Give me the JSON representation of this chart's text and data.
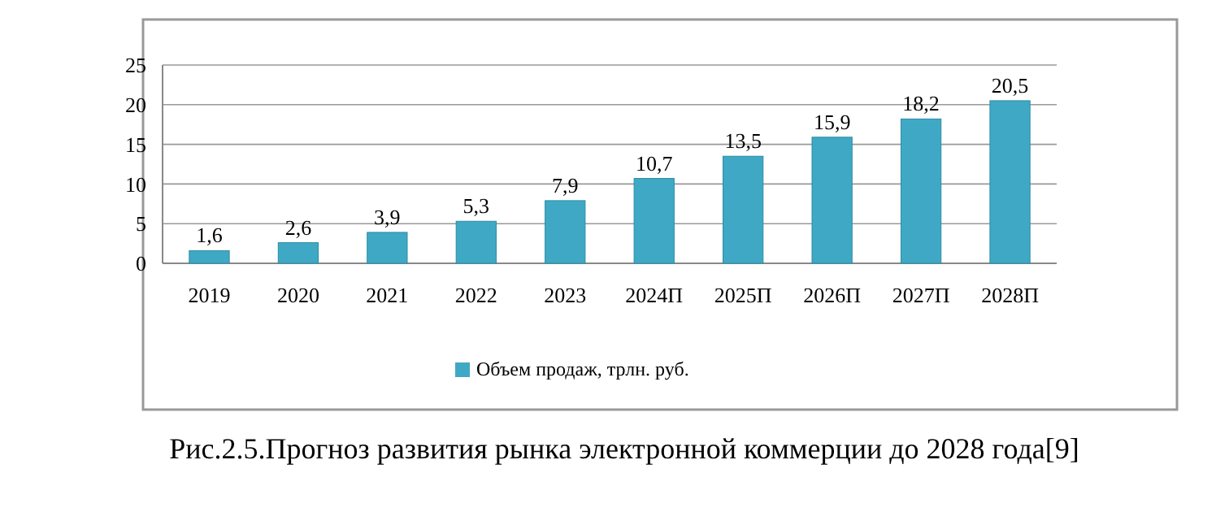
{
  "chart_data": {
    "type": "bar",
    "categories": [
      "2019",
      "2020",
      "2021",
      "2022",
      "2023",
      "2024П",
      "2025П",
      "2026П",
      "2027П",
      "2028П"
    ],
    "series": [
      {
        "name": "Объем продаж, трлн. руб.",
        "color": "#3fa9c5",
        "values": [
          1.6,
          2.6,
          3.9,
          5.3,
          7.9,
          10.7,
          13.5,
          15.9,
          18.2,
          20.5
        ]
      }
    ],
    "value_labels": [
      "1,6",
      "2,6",
      "3,9",
      "5,3",
      "7,9",
      "10,7",
      "13,5",
      "15,9",
      "18,2",
      "20,5"
    ],
    "ylim": [
      0,
      25
    ],
    "yticks": [
      0,
      5,
      10,
      15,
      20,
      25
    ],
    "grid": "y",
    "legend": "bottom",
    "annotations": [
      "Рис.2.5.Прогноз развития рынка электронной коммерции до 2028 года[9]"
    ]
  }
}
